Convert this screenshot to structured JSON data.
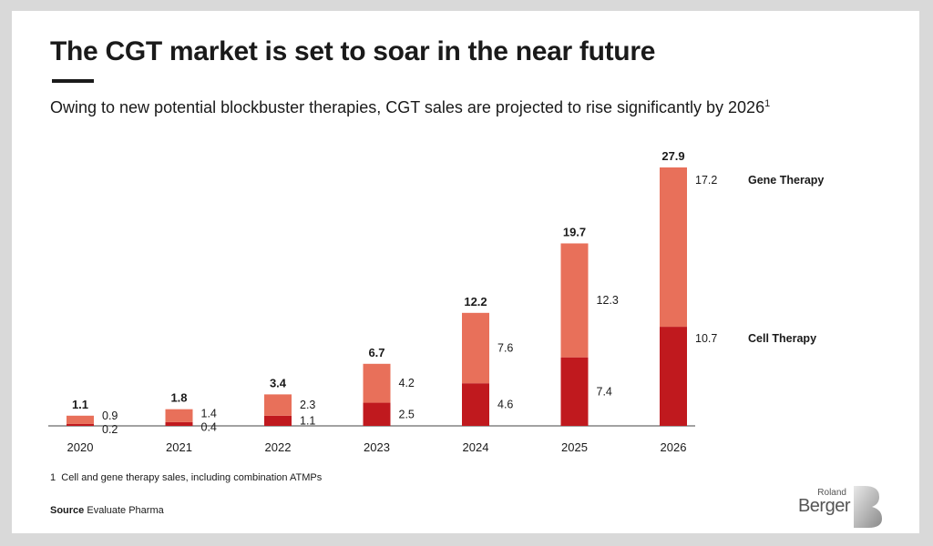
{
  "header": {
    "title": "The CGT market is set to soar in the near future",
    "subtitle": "Owing to new potential blockbuster therapies, CGT sales are projected to rise significantly by 2026",
    "subtitle_footnote_marker": "1"
  },
  "footer": {
    "footnote_number": "1",
    "footnote_text": "Cell and gene therapy sales, including combination ATMPs",
    "source_label": "Source",
    "source_text": "Evaluate Pharma"
  },
  "brand": {
    "line1": "Roland",
    "line2": "Berger"
  },
  "colors": {
    "gene": "#e8705a",
    "cell": "#c0191e",
    "axis": "#444444",
    "text": "#1a1a1a"
  },
  "chart_data": {
    "type": "bar",
    "stacked": true,
    "categories": [
      "2020",
      "2021",
      "2022",
      "2023",
      "2024",
      "2025",
      "2026"
    ],
    "series": [
      {
        "name": "Cell Therapy",
        "values": [
          0.2,
          0.4,
          1.1,
          2.5,
          4.6,
          7.4,
          10.7
        ]
      },
      {
        "name": "Gene Therapy",
        "values": [
          0.9,
          1.4,
          2.3,
          4.2,
          7.6,
          12.3,
          17.2
        ]
      }
    ],
    "totals": [
      1.1,
      1.8,
      3.4,
      6.7,
      12.2,
      19.7,
      27.9
    ],
    "legend_position": "right",
    "ylim": [
      0,
      27.9
    ],
    "grid": false
  }
}
